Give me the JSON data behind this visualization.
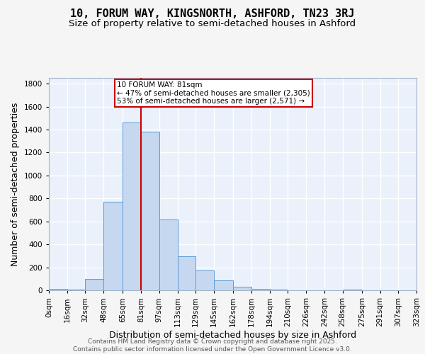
{
  "title": "10, FORUM WAY, KINGSNORTH, ASHFORD, TN23 3RJ",
  "subtitle": "Size of property relative to semi-detached houses in Ashford",
  "xlabel": "Distribution of semi-detached houses by size in Ashford",
  "ylabel": "Number of semi-detached properties",
  "bin_edges": [
    0,
    16,
    32,
    48,
    65,
    81,
    97,
    113,
    129,
    145,
    162,
    178,
    194,
    210,
    226,
    242,
    258,
    275,
    291,
    307,
    323
  ],
  "bin_labels": [
    "0sqm",
    "16sqm",
    "32sqm",
    "48sqm",
    "65sqm",
    "81sqm",
    "97sqm",
    "113sqm",
    "129sqm",
    "145sqm",
    "162sqm",
    "178sqm",
    "194sqm",
    "210sqm",
    "226sqm",
    "242sqm",
    "258sqm",
    "275sqm",
    "291sqm",
    "307sqm",
    "323sqm"
  ],
  "bar_heights": [
    10,
    5,
    100,
    770,
    1460,
    1380,
    615,
    295,
    175,
    85,
    30,
    15,
    5,
    2,
    1,
    1,
    5,
    0,
    0,
    0
  ],
  "bar_color": "#c5d8f0",
  "bar_edge_color": "#5b9bd5",
  "property_value": 81,
  "red_line_color": "#cc0000",
  "annotation_line1": "10 FORUM WAY: 81sqm",
  "annotation_line2": "← 47% of semi-detached houses are smaller (2,305)",
  "annotation_line3": "53% of semi-detached houses are larger (2,571) →",
  "annotation_box_color": "#ffffff",
  "annotation_border_color": "#cc0000",
  "ylim": [
    0,
    1850
  ],
  "yticks": [
    0,
    200,
    400,
    600,
    800,
    1000,
    1200,
    1400,
    1600,
    1800
  ],
  "background_color": "#eaf1fb",
  "grid_color": "#ffffff",
  "footer_line1": "Contains HM Land Registry data © Crown copyright and database right 2025.",
  "footer_line2": "Contains public sector information licensed under the Open Government Licence v3.0.",
  "title_fontsize": 11,
  "subtitle_fontsize": 9.5,
  "label_fontsize": 9,
  "tick_fontsize": 7.5,
  "annotation_fontsize": 7.5,
  "footer_fontsize": 6.5
}
